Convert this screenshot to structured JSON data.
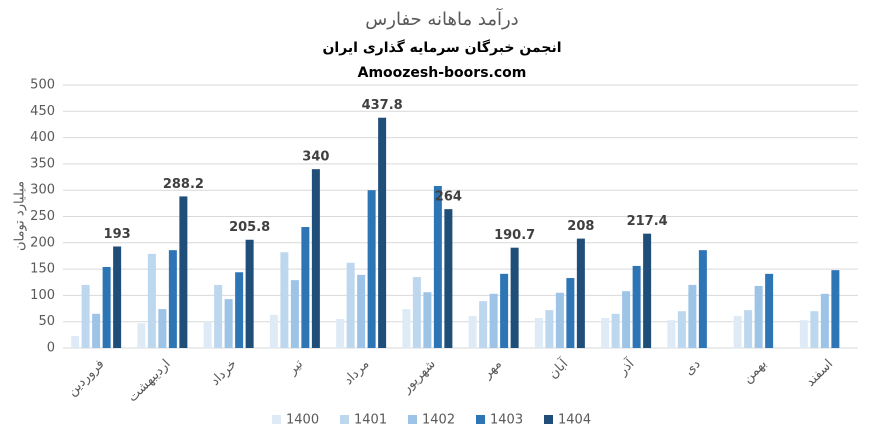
{
  "chart_data": {
    "type": "bar",
    "title": "درآمد ماهانه حفارس",
    "subtitle": "انجمن خبرگان سرمایه گذاری ایران",
    "source": "Amoozesh-boors.com",
    "y_label": "میلیارد تومان",
    "categories": [
      "فروردین",
      "اردیبهشت",
      "خرداد",
      "تیر",
      "مرداد",
      "شهریور",
      "مهر",
      "آبان",
      "آذر",
      "دی",
      "بهمن",
      "اسفند"
    ],
    "series": [
      {
        "name": "1400",
        "color": "#deebf7",
        "values": [
          23,
          47,
          50,
          63,
          55,
          74,
          61,
          57,
          57,
          53,
          61,
          53
        ]
      },
      {
        "name": "1401",
        "color": "#bdd7ee",
        "values": [
          120,
          179,
          120,
          182,
          162,
          135,
          89,
          72,
          65,
          70,
          72,
          70
        ]
      },
      {
        "name": "1402",
        "color": "#9dc3e6",
        "values": [
          65,
          74,
          93,
          129,
          139,
          106,
          103,
          105,
          108,
          120,
          118,
          103
        ]
      },
      {
        "name": "1403",
        "color": "#2e75b6",
        "values": [
          154,
          186,
          144,
          230,
          300,
          308,
          141,
          133,
          156,
          186,
          141,
          148
        ]
      },
      {
        "name": "1404",
        "color": "#1f4e79",
        "values": [
          193,
          288.2,
          205.8,
          340,
          437.8,
          264,
          190.7,
          208,
          217.4,
          null,
          null,
          null
        ],
        "show_labels": true
      }
    ],
    "ylim": [
      0,
      500
    ],
    "yticks": [
      0,
      50,
      100,
      150,
      200,
      250,
      300,
      350,
      400,
      450,
      500
    ],
    "grid": true,
    "legend": "bottom"
  }
}
